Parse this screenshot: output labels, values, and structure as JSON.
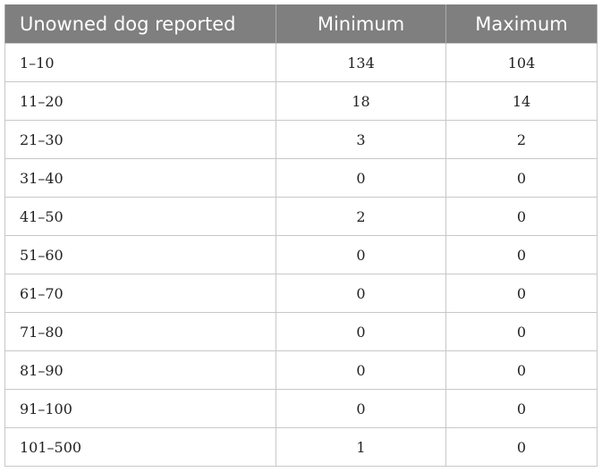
{
  "table": {
    "headers": [
      "Unowned dog reported",
      "Minimum",
      "Maximum"
    ],
    "rows": [
      {
        "range": "1–10",
        "minimum": "134",
        "maximum": "104"
      },
      {
        "range": "11–20",
        "minimum": "18",
        "maximum": "14"
      },
      {
        "range": "21–30",
        "minimum": "3",
        "maximum": "2"
      },
      {
        "range": "31–40",
        "minimum": "0",
        "maximum": "0"
      },
      {
        "range": "41–50",
        "minimum": "2",
        "maximum": "0"
      },
      {
        "range": "51–60",
        "minimum": "0",
        "maximum": "0"
      },
      {
        "range": "61–70",
        "minimum": "0",
        "maximum": "0"
      },
      {
        "range": "71–80",
        "minimum": "0",
        "maximum": "0"
      },
      {
        "range": "81–90",
        "minimum": "0",
        "maximum": "0"
      },
      {
        "range": "91–100",
        "minimum": "0",
        "maximum": "0"
      },
      {
        "range": "101–500",
        "minimum": "1",
        "maximum": "0"
      }
    ]
  }
}
